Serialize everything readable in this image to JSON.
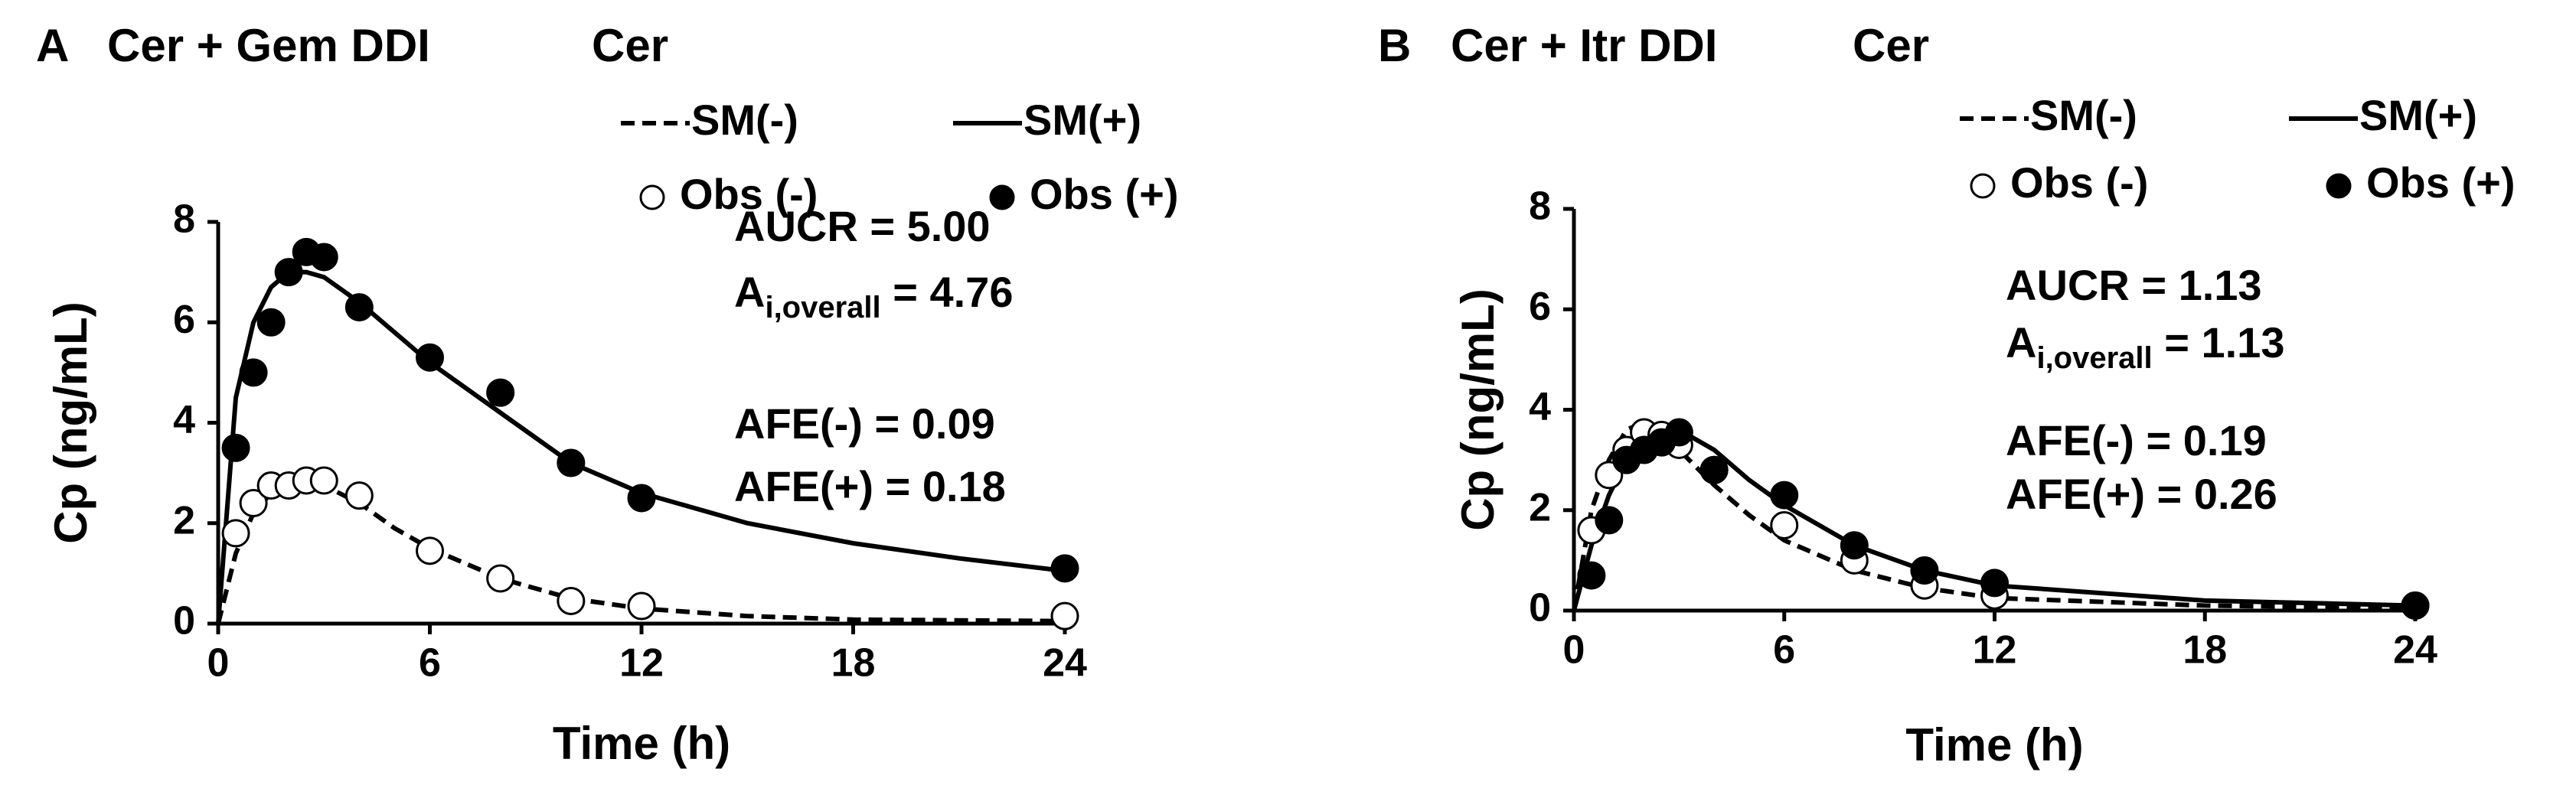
{
  "chart_data": [
    {
      "type": "line",
      "panel": "A",
      "title": "Cer + Gem DDI",
      "subtitle": "Cer",
      "xlabel": "Time (h)",
      "ylabel": "Cp (ng/mL)",
      "xlim": [
        0,
        24
      ],
      "xticks": [
        0,
        6,
        12,
        18,
        24
      ],
      "ylim": [
        0,
        8
      ],
      "yticks": [
        0,
        2,
        4,
        6,
        8
      ],
      "annotations": [
        "AUCR = 5.00",
        {
          "text": "A",
          "sub": "i,overall",
          "suffix": " = 4.76"
        },
        "AFE(-) = 0.09",
        "AFE(+) = 0.18"
      ],
      "series": [
        {
          "name": "SM(-)",
          "style": "dashed",
          "color": "#000000",
          "x": [
            0,
            0.5,
            1,
            1.5,
            2,
            2.5,
            3,
            4,
            5,
            6,
            8,
            10,
            12,
            15,
            18,
            24
          ],
          "values": [
            0,
            1.4,
            2.2,
            2.6,
            2.8,
            2.85,
            2.75,
            2.4,
            1.9,
            1.5,
            0.9,
            0.5,
            0.3,
            0.15,
            0.08,
            0.05
          ]
        },
        {
          "name": "SM(+)",
          "style": "solid",
          "color": "#000000",
          "x": [
            0,
            0.5,
            1,
            1.5,
            2,
            2.5,
            3,
            4,
            5,
            6,
            8,
            10,
            12,
            15,
            18,
            21,
            24
          ],
          "values": [
            0,
            4.5,
            6.0,
            6.7,
            7.0,
            7.0,
            6.9,
            6.4,
            5.8,
            5.2,
            4.2,
            3.2,
            2.6,
            2.0,
            1.6,
            1.3,
            1.05
          ]
        },
        {
          "name": "Obs (-)",
          "marker": "open",
          "color": "#000000",
          "x": [
            0.5,
            1,
            1.5,
            2,
            2.5,
            3,
            4,
            6,
            8,
            10,
            12,
            24
          ],
          "values": [
            1.8,
            2.4,
            2.75,
            2.75,
            2.85,
            2.85,
            2.55,
            1.45,
            0.9,
            0.45,
            0.35,
            0.15
          ]
        },
        {
          "name": "Obs (+)",
          "marker": "filled",
          "color": "#000000",
          "x": [
            0.5,
            1,
            1.5,
            2,
            2.5,
            3,
            4,
            6,
            8,
            10,
            12,
            24
          ],
          "values": [
            3.5,
            5.0,
            6.0,
            7.0,
            7.4,
            7.3,
            6.3,
            5.3,
            4.6,
            3.2,
            2.5,
            1.1
          ]
        }
      ]
    },
    {
      "type": "line",
      "panel": "B",
      "title": "Cer + Itr DDI",
      "subtitle": "Cer",
      "xlabel": "Time (h)",
      "ylabel": "Cp (ng/mL)",
      "xlim": [
        0,
        24
      ],
      "xticks": [
        0,
        6,
        12,
        18,
        24
      ],
      "ylim": [
        0,
        8
      ],
      "yticks": [
        0,
        2,
        4,
        6,
        8
      ],
      "annotations": [
        "AUCR = 1.13",
        {
          "text": "A",
          "sub": "i,overall",
          "suffix": " = 1.13"
        },
        "AFE(-) = 0.19",
        "AFE(+) = 0.26"
      ],
      "series": [
        {
          "name": "SM(-)",
          "style": "dashed",
          "color": "#000000",
          "x": [
            0,
            0.5,
            1,
            1.5,
            2,
            2.5,
            3,
            4,
            5,
            6,
            8,
            10,
            12,
            18,
            24
          ],
          "values": [
            0,
            2.0,
            3.0,
            3.6,
            3.75,
            3.5,
            3.2,
            2.5,
            1.9,
            1.4,
            0.8,
            0.45,
            0.25,
            0.1,
            0.05
          ]
        },
        {
          "name": "SM(+)",
          "style": "solid",
          "color": "#000000",
          "x": [
            0,
            0.5,
            1,
            1.5,
            2,
            2.5,
            3,
            4,
            5,
            6,
            8,
            10,
            12,
            18,
            24
          ],
          "values": [
            0,
            1.3,
            2.3,
            3.0,
            3.4,
            3.6,
            3.6,
            3.2,
            2.6,
            2.1,
            1.3,
            0.8,
            0.5,
            0.2,
            0.1
          ]
        },
        {
          "name": "Obs (-)",
          "marker": "open",
          "color": "#000000",
          "x": [
            0.5,
            1,
            1.5,
            2,
            2.5,
            3,
            4,
            6,
            8,
            10,
            12,
            24
          ],
          "values": [
            1.6,
            2.7,
            3.2,
            3.55,
            3.5,
            3.3,
            2.8,
            1.7,
            1.0,
            0.5,
            0.3,
            0.1
          ]
        },
        {
          "name": "Obs (+)",
          "marker": "filled",
          "color": "#000000",
          "x": [
            0.5,
            1,
            1.5,
            2,
            2.5,
            3,
            4,
            6,
            8,
            10,
            12,
            24
          ],
          "values": [
            0.7,
            1.8,
            3.0,
            3.2,
            3.35,
            3.55,
            2.8,
            2.3,
            1.3,
            0.8,
            0.55,
            0.1
          ]
        }
      ]
    }
  ]
}
